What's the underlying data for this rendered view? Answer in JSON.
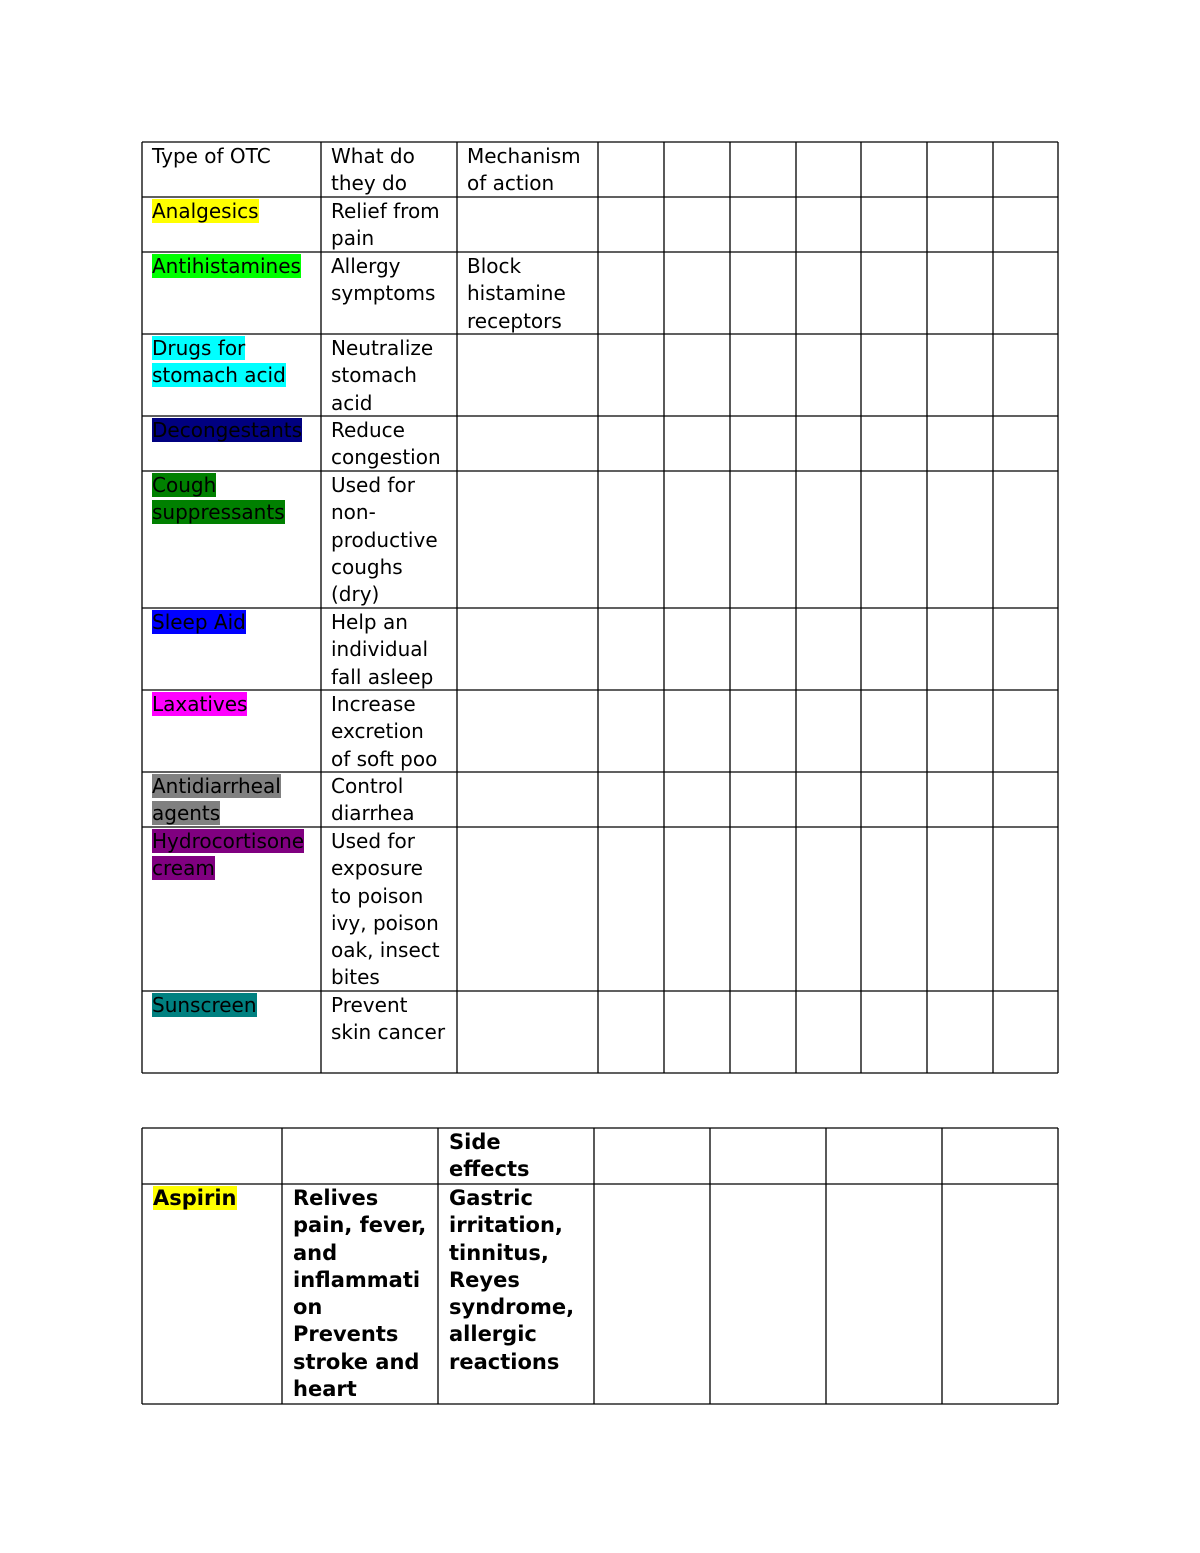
{
  "table1": {
    "header": [
      "Type of OTC",
      "What do they do",
      "Mechanism of action"
    ],
    "rows": [
      {
        "type": "Analgesics",
        "highlight": "#ffff00",
        "what": "Relief from pain"
      },
      {
        "type": "Antihistamines",
        "highlight": "#00ff00",
        "what": "Allergy symptoms",
        "mechanism": "Block histamine receptors"
      },
      {
        "type": "Drugs for stomach acid",
        "highlight": "#00ffff",
        "what": "Neutralize stomach acid"
      },
      {
        "type": "Decongestants",
        "highlight": "#000080",
        "what": "Reduce congestion"
      },
      {
        "type": "Cough suppressants",
        "highlight": "#008000",
        "what": "Used for non-productive coughs (dry)"
      },
      {
        "type": "Sleep Aid",
        "highlight": "#0000ff",
        "what": "Help an individual fall asleep"
      },
      {
        "type": "Laxatives",
        "highlight": "#ff00ff",
        "what": "Increase excretion of soft poo"
      },
      {
        "type": "Antidiarrheal agents",
        "highlight": "#808080",
        "what": "Control diarrhea"
      },
      {
        "type": "Hydrocortisone cream",
        "highlight": "#800080",
        "what": "Used for exposure to poison ivy, poison oak, insect bites"
      },
      {
        "type": "Sunscreen",
        "highlight": "#008080",
        "what": "Prevent skin cancer"
      }
    ]
  },
  "table2": {
    "header": "Side effects",
    "rows": [
      {
        "name": "Aspirin",
        "highlight": "#ffff00",
        "uses": "Relives pain, fever, and inflammation Prevents stroke and heart",
        "side_effects": "Gastric irritation, tinnitus, Reyes syndrome, allergic reactions"
      }
    ]
  }
}
